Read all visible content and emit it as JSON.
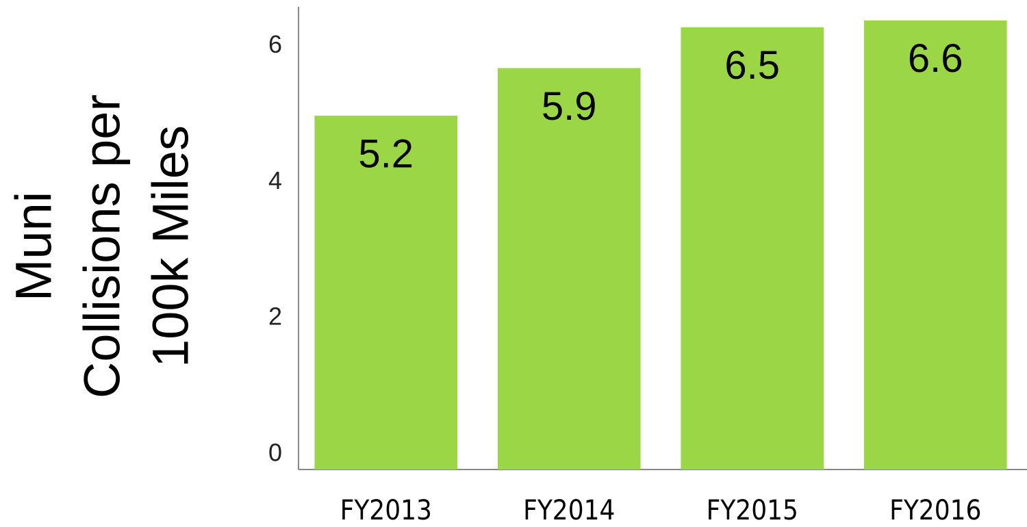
{
  "chart_data": {
    "type": "bar",
    "y_label_lines": [
      "Muni",
      "Collisions per",
      "100k Miles"
    ],
    "categories": [
      "FY2013",
      "FY2014",
      "FY2015",
      "FY2016"
    ],
    "values": [
      5.2,
      5.9,
      6.5,
      6.6
    ],
    "color": "#9bd646",
    "ylim": [
      0,
      6.8
    ],
    "yticks": [
      0,
      2,
      4,
      6
    ],
    "grid": false
  }
}
